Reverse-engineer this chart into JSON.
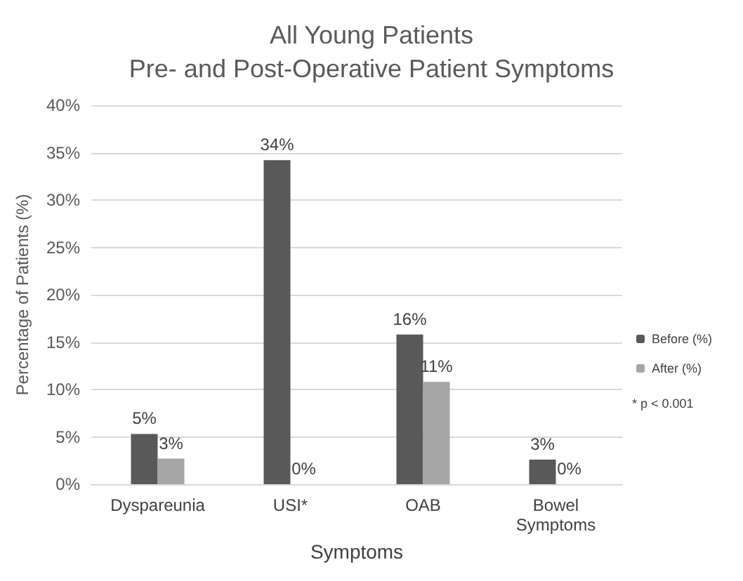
{
  "chart_data": {
    "type": "bar",
    "title": "All Young Patients\nPre- and Post-Operative Patient Symptoms",
    "xlabel": "Symptoms",
    "ylabel": "Percentage of Patients (%)",
    "categories": [
      "Dyspareunia",
      "USI*",
      "OAB",
      "Bowel\nSymptoms"
    ],
    "series": [
      {
        "name": "Before (%)",
        "color": "#595959",
        "values": [
          5.3,
          34.2,
          15.8,
          2.6
        ],
        "value_labels": [
          "5%",
          "34%",
          "16%",
          "3%"
        ]
      },
      {
        "name": "After (%)",
        "color": "#a6a6a6",
        "values": [
          2.7,
          0,
          10.8,
          0
        ],
        "value_labels": [
          "3%",
          "0%",
          "11%",
          "0%"
        ]
      }
    ],
    "ylim": [
      0,
      40
    ],
    "yticks": [
      {
        "value": 0,
        "label": "0%"
      },
      {
        "value": 5,
        "label": "5%"
      },
      {
        "value": 10,
        "label": "10%"
      },
      {
        "value": 15,
        "label": "15%"
      },
      {
        "value": 20,
        "label": "20%"
      },
      {
        "value": 25,
        "label": "25%"
      },
      {
        "value": 30,
        "label": "30%"
      },
      {
        "value": 35,
        "label": "35%"
      },
      {
        "value": 40,
        "label": "40%"
      }
    ],
    "grid": "y",
    "legend": "right",
    "annotations": [
      "* p < 0.001"
    ]
  }
}
